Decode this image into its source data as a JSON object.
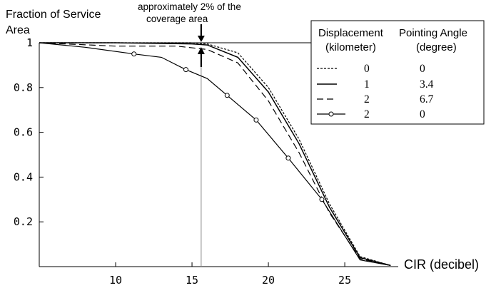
{
  "chart_data": {
    "type": "line",
    "ylabel_line1": "Fraction of Service",
    "ylabel_line2": "Area",
    "xlabel": "CIR (decibel)",
    "xlim": [
      5,
      28.5
    ],
    "ylim": [
      0,
      1
    ],
    "xticks": [
      "10",
      "15",
      "20",
      "25"
    ],
    "xtick_values": [
      10,
      15,
      20,
      25
    ],
    "yticks": [
      "1",
      "0.8",
      "0.6",
      "0.4",
      "0.2"
    ],
    "ytick_values": [
      1,
      0.8,
      0.6,
      0.4,
      0.2
    ],
    "grid": false,
    "legend": {
      "position": "top-right",
      "header_col1_line1": "Displacement",
      "header_col1_line2": "(kilometer)",
      "header_col2_line1": "Pointing Angle",
      "header_col2_line2": "(degree)"
    },
    "annotation": {
      "line1": "approximately 2% of the",
      "line2": "coverage area",
      "x": 15.6
    },
    "series": [
      {
        "displacement": "0",
        "angle": "0",
        "style": "dotted",
        "x": [
          5,
          10,
          15,
          16,
          18,
          20,
          22,
          24,
          26,
          28
        ],
        "y": [
          1.0,
          1.0,
          1.0,
          0.995,
          0.955,
          0.8,
          0.57,
          0.28,
          0.045,
          0.005
        ]
      },
      {
        "displacement": "1",
        "angle": "3.4",
        "style": "solid",
        "x": [
          5,
          10,
          15,
          16,
          18,
          20,
          22,
          24,
          26,
          28
        ],
        "y": [
          1.0,
          1.0,
          0.995,
          0.99,
          0.935,
          0.78,
          0.55,
          0.265,
          0.04,
          0.005
        ]
      },
      {
        "displacement": "2",
        "angle": "6.7",
        "style": "dashed",
        "x": [
          5,
          10,
          14,
          16,
          18,
          20,
          22,
          24,
          26,
          28
        ],
        "y": [
          1.0,
          0.985,
          0.985,
          0.97,
          0.91,
          0.74,
          0.51,
          0.24,
          0.035,
          0.005
        ]
      },
      {
        "displacement": "2",
        "angle": "0",
        "style": "solid-circle",
        "x": [
          5,
          8,
          11.2,
          13,
          14.6,
          16,
          17.3,
          19.2,
          21.3,
          23.5,
          26,
          28
        ],
        "y": [
          1.0,
          0.98,
          0.95,
          0.935,
          0.88,
          0.84,
          0.765,
          0.655,
          0.485,
          0.3,
          0.03,
          0.005
        ],
        "markers_x": [
          11.2,
          14.6,
          17.3,
          19.2,
          21.3,
          23.5
        ],
        "markers_y": [
          0.95,
          0.88,
          0.765,
          0.655,
          0.485,
          0.3
        ]
      }
    ]
  }
}
